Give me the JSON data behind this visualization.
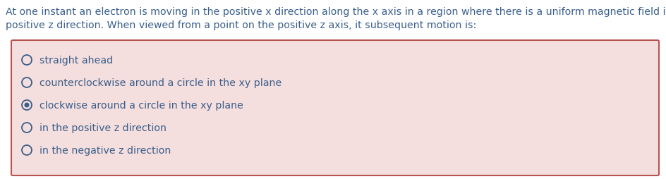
{
  "question_text_line1": "At one instant an electron is moving in the positive x direction along the x axis in a region where there is a uniform magnetic field in the",
  "question_text_line2": "positive z direction. When viewed from a point on the positive z axis, it subsequent motion is:",
  "options": [
    "straight ahead",
    "counterclockwise around a circle in the xy plane",
    "clockwise around a circle in the xy plane",
    "in the positive z direction",
    "in the negative z direction"
  ],
  "selected_index": 2,
  "text_color": "#3a5f8a",
  "box_bg_color": "#f5dede",
  "box_border_color": "#b85450",
  "radio_color": "#3a5f8a",
  "fig_bg_color": "#ffffff",
  "question_fontsize": 10.2,
  "option_fontsize": 10.2,
  "fig_width": 9.44,
  "fig_height": 2.55,
  "dpi": 100
}
